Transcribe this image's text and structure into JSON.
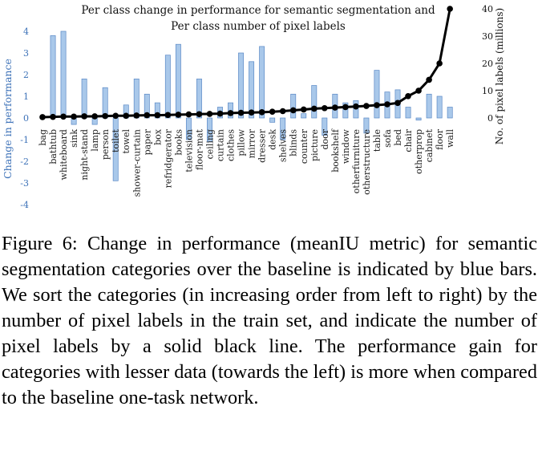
{
  "chart_data": {
    "type": "bar+line",
    "title_lines": [
      "Per class change in performance for semantic segmentation and",
      "Per class number of pixel labels"
    ],
    "categories": [
      "bag",
      "bathtub",
      "whiteboard",
      "sink",
      "night-stand",
      "lamp",
      "person",
      "toilet",
      "towel",
      "shower-curtain",
      "paper",
      "box",
      "refridgerator",
      "books",
      "television",
      "floor-mat",
      "ceiling",
      "curtain",
      "clothes",
      "pillow",
      "mirror",
      "dresser",
      "desk",
      "shelves",
      "blinds",
      "counter",
      "picture",
      "door",
      "bookshelf",
      "window",
      "otherfurniture",
      "otherstructure",
      "table",
      "sofa",
      "bed",
      "chair",
      "otherprop",
      "cabinet",
      "floor",
      "wall"
    ],
    "series": [
      {
        "name": "Change in performance",
        "type": "bar",
        "axis": "left",
        "values": [
          0.1,
          3.8,
          4.0,
          -0.3,
          1.8,
          -0.3,
          1.4,
          -2.9,
          0.6,
          1.8,
          1.1,
          0.7,
          2.9,
          3.4,
          -1.0,
          1.8,
          -1.1,
          0.5,
          0.7,
          3.0,
          2.6,
          3.3,
          -0.2,
          -1.0,
          1.1,
          0.2,
          1.5,
          -0.8,
          1.1,
          0.7,
          0.8,
          -0.7,
          2.2,
          1.2,
          1.3,
          0.5,
          -0.1,
          1.1,
          1.0,
          0.5
        ]
      },
      {
        "name": "Number of pixel labels",
        "type": "line",
        "axis": "right",
        "values": [
          0.3,
          0.4,
          0.5,
          0.5,
          0.6,
          0.6,
          0.7,
          0.8,
          0.8,
          0.9,
          1.0,
          1.0,
          1.1,
          1.2,
          1.3,
          1.4,
          1.5,
          1.6,
          1.8,
          1.9,
          2.0,
          2.1,
          2.3,
          2.5,
          2.8,
          3.1,
          3.4,
          3.6,
          3.8,
          4.0,
          4.2,
          4.4,
          4.7,
          5.0,
          5.5,
          8.0,
          10.0,
          14.0,
          20.0,
          40.0
        ]
      }
    ],
    "left_axis": {
      "label": "Change in performance",
      "ylim": [
        -4,
        4
      ],
      "ticks": [
        "4",
        "3",
        "2",
        "1",
        "0",
        "-1",
        "-2",
        "-3",
        "-4"
      ]
    },
    "right_axis": {
      "label": "No. of pixel labels (millions)",
      "ylim": [
        0,
        40
      ],
      "ticks": [
        "40",
        "30",
        "20",
        "10",
        "0"
      ]
    },
    "grid": false
  },
  "caption": "Figure 6: Change in performance (meanIU metric) for semantic segmentation categories over the baseline is indicated by blue bars. We sort the categories (in increasing order from left to right) by the number of pixel labels in the train set, and indicate the number of pixel labels by a solid black line. The performance gain for categories with lesser data (towards the left) is more when compared to the baseline one-task network."
}
